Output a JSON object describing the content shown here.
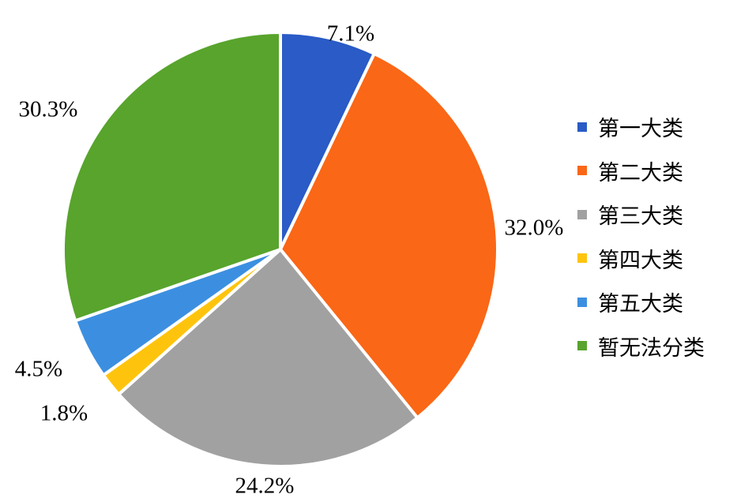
{
  "chart_data": {
    "type": "pie",
    "start_angle": "12 o'clock",
    "direction": "clockwise",
    "legend_position": "right",
    "slices": [
      {
        "name": "第一大类",
        "value": 7.1,
        "label": "7.1%",
        "color": "#2a5bc6"
      },
      {
        "name": "第二大类",
        "value": 32.0,
        "label": "32.0%",
        "color": "#fa6716"
      },
      {
        "name": "第三大类",
        "value": 24.2,
        "label": "24.2%",
        "color": "#a1a1a1"
      },
      {
        "name": "第四大类",
        "value": 1.8,
        "label": "1.8%",
        "color": "#fec40d"
      },
      {
        "name": "第五大类",
        "value": 4.5,
        "label": "4.5%",
        "color": "#3c8fe0"
      },
      {
        "name": "暂无法分类",
        "value": 30.3,
        "label": "30.3%",
        "color": "#58a42c"
      }
    ]
  }
}
